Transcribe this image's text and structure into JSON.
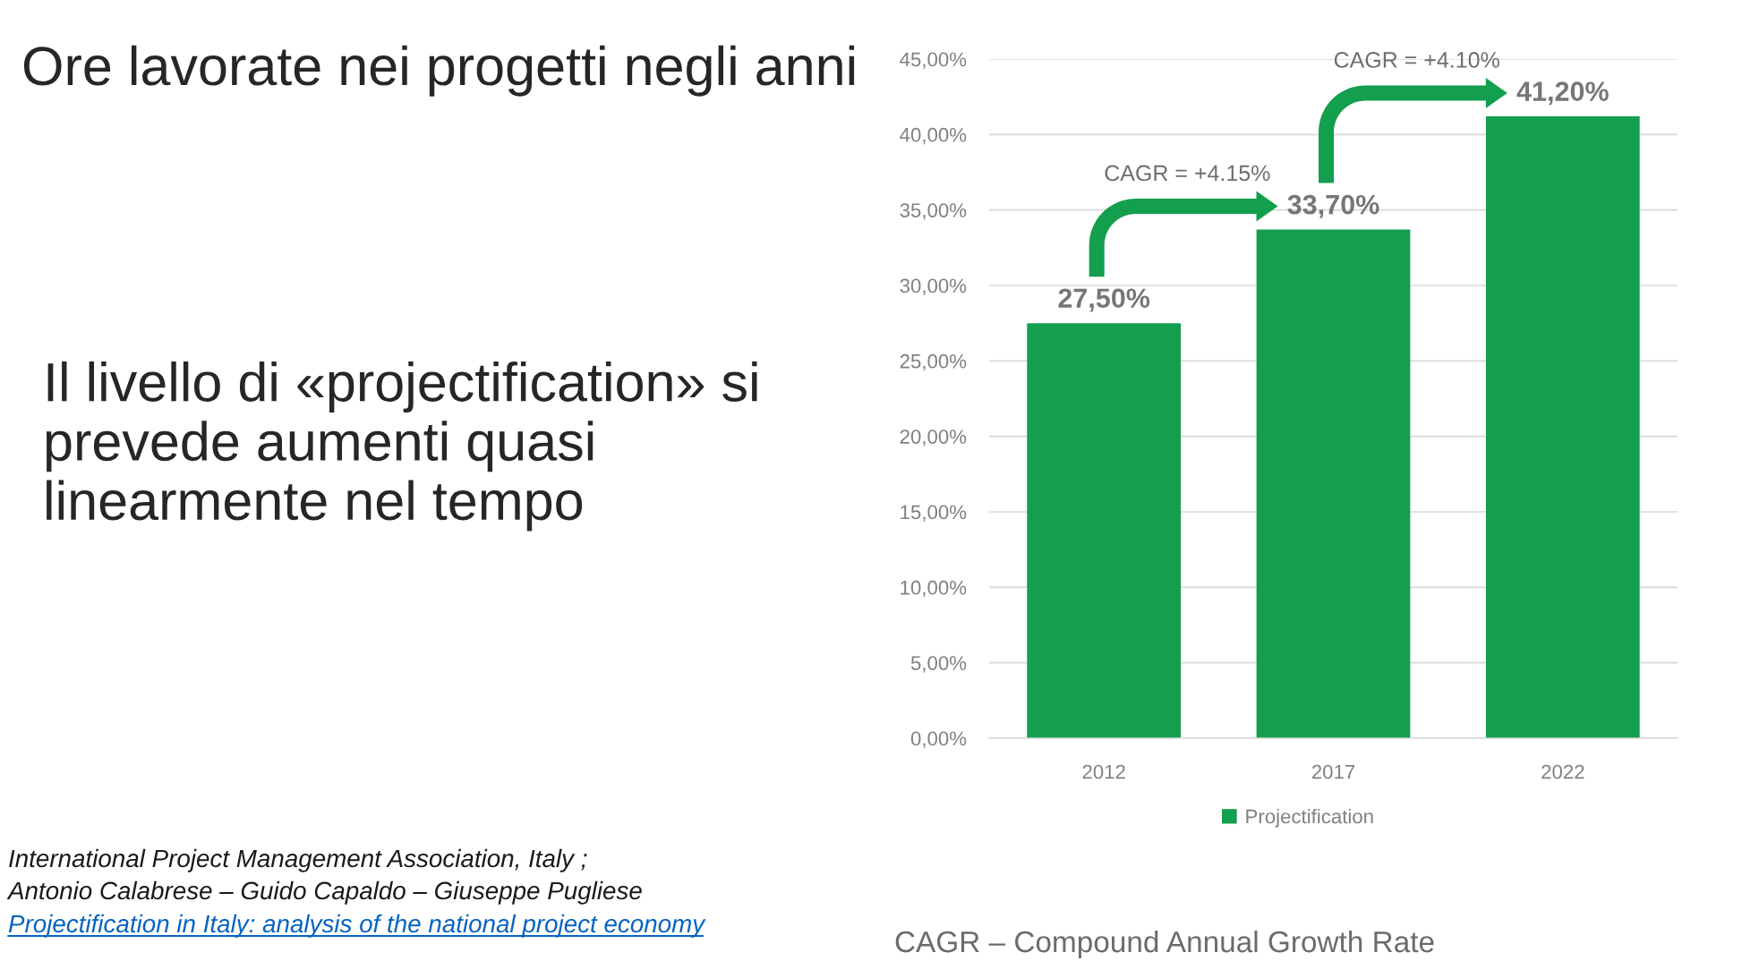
{
  "chart_data": {
    "type": "bar",
    "title": "Ore lavorate nei progetti negli anni",
    "subtitle": "Il livello di «projectification» si prevede aumenti quasi linearmente nel tempo",
    "categories": [
      "2012",
      "2017",
      "2022"
    ],
    "series": [
      {
        "name": "Projectification",
        "color": "#139f4e",
        "values": [
          27.5,
          33.7,
          41.2
        ],
        "value_labels": [
          "27,50%",
          "33,70%",
          "41,20%"
        ]
      }
    ],
    "ylim": [
      0,
      45
    ],
    "yticks": [
      {
        "value": 0,
        "label": "0,00%"
      },
      {
        "value": 5,
        "label": "5,00%"
      },
      {
        "value": 10,
        "label": "10,00%"
      },
      {
        "value": 15,
        "label": "15,00%"
      },
      {
        "value": 20,
        "label": "20,00%"
      },
      {
        "value": 25,
        "label": "25,00%"
      },
      {
        "value": 30,
        "label": "30,00%"
      },
      {
        "value": 35,
        "label": "35,00%"
      },
      {
        "value": 40,
        "label": "40,00%"
      },
      {
        "value": 45,
        "label": "45,00%"
      }
    ],
    "grid": "y",
    "legend": "bottom",
    "annotations": [
      "CAGR = +4.15%",
      "CAGR = +4.10%",
      "International Project Management Association, Italy ;",
      "Antonio Calabrese – Guido Capaldo – Giuseppe Pugliese",
      "Projectification in Italy: analysis of the national project economy",
      "CAGR – Compound Annual Growth Rate"
    ]
  }
}
